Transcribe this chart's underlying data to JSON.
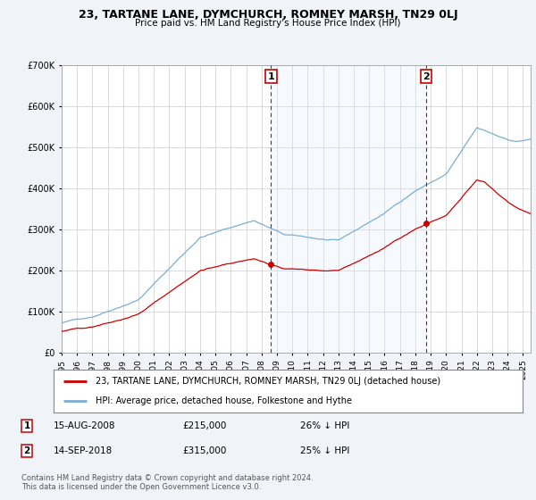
{
  "title": "23, TARTANE LANE, DYMCHURCH, ROMNEY MARSH, TN29 0LJ",
  "subtitle": "Price paid vs. HM Land Registry's House Price Index (HPI)",
  "ylim": [
    0,
    700000
  ],
  "xlim_start": 1995.0,
  "xlim_end": 2025.5,
  "sale1_date": 2008.62,
  "sale1_price": 215000,
  "sale2_date": 2018.71,
  "sale2_price": 315000,
  "legend_property": "23, TARTANE LANE, DYMCHURCH, ROMNEY MARSH, TN29 0LJ (detached house)",
  "legend_hpi": "HPI: Average price, detached house, Folkestone and Hythe",
  "footer": "Contains HM Land Registry data © Crown copyright and database right 2024.\nThis data is licensed under the Open Government Licence v3.0.",
  "property_color": "#cc0000",
  "hpi_color": "#7aadd4",
  "shade_color": "#ddeeff",
  "background_color": "#f0f4f8",
  "plot_bg_color": "#ffffff",
  "grid_color": "#cccccc"
}
